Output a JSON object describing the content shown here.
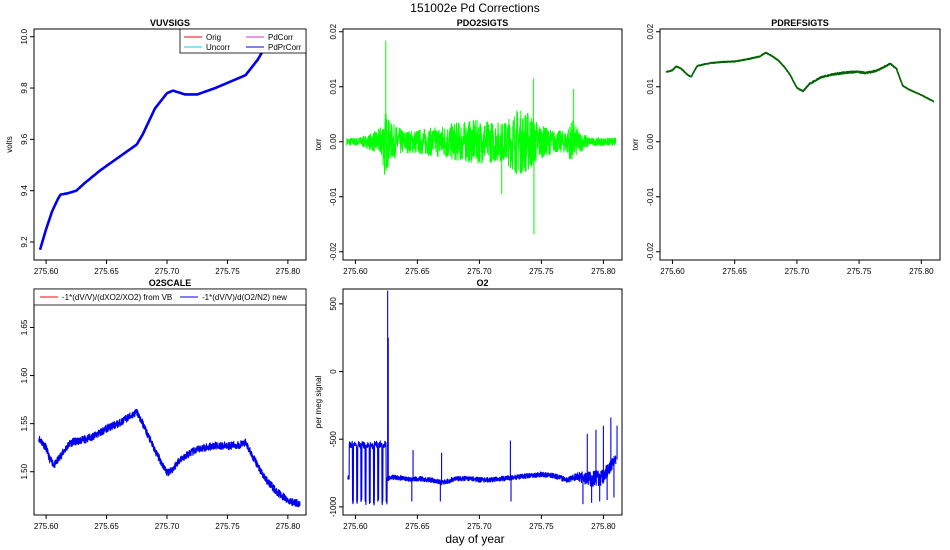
{
  "figure": {
    "title": "151002e   Pd Corrections",
    "xlabel": "day of year",
    "colors": {
      "axis": "#000000",
      "orig": "#ff0000",
      "uncorr": "#00d8d8",
      "pdcorr": "#cc33cc",
      "pdprcorr": "#0000ee",
      "green": "#00ff00",
      "darkgreen": "#006400"
    }
  },
  "chart_data": [
    {
      "id": "vuvsigs",
      "type": "line",
      "title": "VUVSIGS",
      "ylabel": "volts",
      "xlim": [
        275.59,
        275.815
      ],
      "ylim": [
        9.13,
        10.03
      ],
      "xticks": [
        275.6,
        275.65,
        275.7,
        275.75,
        275.8
      ],
      "xtick_labels": [
        "275.60",
        "275.65",
        "275.70",
        "275.75",
        "275.80"
      ],
      "yticks": [
        9.2,
        9.4,
        9.6,
        9.8,
        10.0
      ],
      "ytick_labels": [
        "9.2",
        "9.4",
        "9.6",
        "9.8",
        "10.0"
      ],
      "legend": {
        "placement": "top-right",
        "entries": [
          {
            "label": "Orig",
            "color": "#ff0000"
          },
          {
            "label": "PdCorr",
            "color": "#cc33cc"
          },
          {
            "label": "Uncorr",
            "color": "#00d8d8"
          },
          {
            "label": "PdPrCorr",
            "color": "#0000ee"
          }
        ]
      },
      "series": [
        {
          "name": "PdPrCorr",
          "color": "#0000ee",
          "width": 2.6,
          "noise": 0,
          "x": [
            275.595,
            275.6,
            275.605,
            275.61,
            275.612,
            275.618,
            275.625,
            275.632,
            275.645,
            275.66,
            275.675,
            275.68,
            275.69,
            275.7,
            275.705,
            275.715,
            275.725,
            275.74,
            275.755,
            275.765,
            275.775,
            275.78
          ],
          "y": [
            9.17,
            9.25,
            9.32,
            9.37,
            9.385,
            9.39,
            9.4,
            9.43,
            9.48,
            9.53,
            9.58,
            9.62,
            9.72,
            9.78,
            9.79,
            9.775,
            9.775,
            9.8,
            9.83,
            9.85,
            9.91,
            9.95
          ]
        }
      ]
    },
    {
      "id": "pdo2sigts",
      "type": "line",
      "title": "PDO2SIGTS",
      "ylabel": "torr",
      "xlim": [
        275.59,
        275.815
      ],
      "ylim": [
        -0.0215,
        0.0205
      ],
      "xticks": [
        275.6,
        275.65,
        275.7,
        275.75,
        275.8
      ],
      "xtick_labels": [
        "275.60",
        "275.65",
        "275.70",
        "275.75",
        "275.80"
      ],
      "yticks": [
        -0.02,
        -0.01,
        0.0,
        0.01,
        0.02
      ],
      "ytick_labels": [
        "-0.02",
        "-0.01",
        "0.00",
        "0.01",
        "0.02"
      ],
      "series": [
        {
          "name": "PDO2SIGTS",
          "color": "#00ff00",
          "width": 1,
          "noise": 1,
          "seed": 7,
          "x": [
            275.593,
            275.6,
            275.61,
            275.62,
            275.624,
            275.628,
            275.64,
            275.66,
            275.68,
            275.7,
            275.72,
            275.73,
            275.74,
            275.75,
            275.76,
            275.77,
            275.775,
            275.78,
            275.79,
            275.81
          ],
          "y": [
            0,
            0,
            0,
            0,
            0,
            0,
            0,
            0,
            0,
            0,
            0,
            0,
            0,
            0,
            0,
            0,
            0,
            0,
            0,
            0
          ],
          "amp": [
            0.0007,
            0.0007,
            0.0012,
            0.0025,
            0.006,
            0.0035,
            0.002,
            0.0025,
            0.0035,
            0.004,
            0.0035,
            0.006,
            0.0055,
            0.003,
            0.002,
            0.002,
            0.004,
            0.002,
            0.0007,
            0.0007
          ],
          "spikes": [
            {
              "x": 275.6245,
              "y": 0.0184
            },
            {
              "x": 275.6235,
              "y": -0.006
            },
            {
              "x": 275.744,
              "y": -0.0168
            },
            {
              "x": 275.7435,
              "y": 0.0115
            },
            {
              "x": 275.718,
              "y": -0.0095
            },
            {
              "x": 275.776,
              "y": 0.0096
            }
          ]
        }
      ]
    },
    {
      "id": "pdrefsigts",
      "type": "line",
      "title": "PDREFSIGTS",
      "ylabel": "torr",
      "xlim": [
        275.59,
        275.815
      ],
      "ylim": [
        -0.0215,
        0.0205
      ],
      "xticks": [
        275.6,
        275.65,
        275.7,
        275.75,
        275.8
      ],
      "xtick_labels": [
        "275.60",
        "275.65",
        "275.70",
        "275.75",
        "275.80"
      ],
      "yticks": [
        -0.02,
        -0.01,
        0.0,
        0.01,
        0.02
      ],
      "ytick_labels": [
        "-0.02",
        "-0.01",
        "0.00",
        "0.01",
        "0.02"
      ],
      "series": [
        {
          "name": "PDREFSIGTS",
          "color": "#006400",
          "width": 1.6,
          "noise": 0.25,
          "seed": 3,
          "x": [
            275.595,
            275.6,
            275.603,
            275.607,
            275.612,
            275.615,
            275.62,
            275.63,
            275.64,
            275.65,
            275.66,
            275.67,
            275.675,
            275.68,
            275.685,
            275.69,
            275.695,
            275.7,
            275.705,
            275.71,
            275.72,
            275.73,
            275.74,
            275.75,
            275.755,
            275.76,
            275.765,
            275.775,
            275.78,
            275.785,
            275.79,
            275.8,
            275.81
          ],
          "y": [
            0.0127,
            0.013,
            0.0137,
            0.0133,
            0.0122,
            0.0118,
            0.0138,
            0.0143,
            0.0145,
            0.0146,
            0.015,
            0.0155,
            0.0162,
            0.0156,
            0.0148,
            0.0136,
            0.012,
            0.0098,
            0.0092,
            0.0105,
            0.0118,
            0.0123,
            0.0126,
            0.0127,
            0.0125,
            0.0127,
            0.013,
            0.0142,
            0.0133,
            0.0102,
            0.0095,
            0.0085,
            0.0073
          ],
          "amp": [
            0.0003,
            0.0003,
            0.0003,
            0.0003,
            0.0003,
            0.0003,
            0.0003,
            0.0003,
            0.0003,
            0.0003,
            0.0003,
            0.0003,
            0.0003,
            0.0003,
            0.0003,
            0.0003,
            0.0003,
            0.0003,
            0.0004,
            0.0005,
            0.0006,
            0.0006,
            0.0007,
            0.0006,
            0.0006,
            0.0006,
            0.0005,
            0.0004,
            0.0004,
            0.0003,
            0.0002,
            0.0002,
            0.0002
          ]
        }
      ]
    },
    {
      "id": "o2scale",
      "type": "line",
      "title": "O2SCALE",
      "ylabel": "",
      "xlim": [
        275.59,
        275.815
      ],
      "ylim": [
        1.455,
        1.69
      ],
      "xticks": [
        275.6,
        275.65,
        275.7,
        275.75,
        275.8
      ],
      "xtick_labels": [
        "275.60",
        "275.65",
        "275.70",
        "275.75",
        "275.80"
      ],
      "yticks": [
        1.5,
        1.55,
        1.6,
        1.65
      ],
      "ytick_labels": [
        "1.50",
        "1.55",
        "1.60",
        "1.65"
      ],
      "legend": {
        "placement": "top",
        "entries": [
          {
            "label": "-1*(dV/V)/(dXO2/XO2) from VB",
            "color": "#ff0000"
          },
          {
            "label": "-1*(dV/V)/d(O2/N2) new",
            "color": "#0000ee"
          }
        ]
      },
      "series": [
        {
          "name": "-1*(dV/V)/d(O2/N2) new",
          "color": "#0000ee",
          "width": 1.1,
          "noise": 1,
          "seed": 11,
          "x": [
            275.594,
            275.6,
            275.603,
            275.607,
            275.615,
            275.62,
            275.63,
            275.64,
            275.65,
            275.66,
            275.67,
            275.675,
            275.68,
            275.69,
            275.7,
            275.705,
            275.71,
            275.72,
            275.73,
            275.74,
            275.75,
            275.76,
            275.765,
            275.77,
            275.78,
            275.79,
            275.8,
            275.805,
            275.81
          ],
          "y": [
            1.535,
            1.525,
            1.513,
            1.507,
            1.522,
            1.53,
            1.533,
            1.537,
            1.545,
            1.55,
            1.558,
            1.562,
            1.55,
            1.522,
            1.499,
            1.503,
            1.512,
            1.52,
            1.525,
            1.527,
            1.527,
            1.528,
            1.53,
            1.518,
            1.495,
            1.48,
            1.47,
            1.468,
            1.467
          ],
          "amp": [
            0.004,
            0.004,
            0.004,
            0.004,
            0.004,
            0.004,
            0.004,
            0.004,
            0.004,
            0.004,
            0.004,
            0.004,
            0.004,
            0.004,
            0.004,
            0.004,
            0.004,
            0.004,
            0.004,
            0.004,
            0.004,
            0.004,
            0.004,
            0.004,
            0.004,
            0.004,
            0.004,
            0.004,
            0.004
          ]
        }
      ]
    },
    {
      "id": "o2",
      "type": "line",
      "title": "O2",
      "ylabel": "per meg signal",
      "xlim": [
        275.59,
        275.815
      ],
      "ylim": [
        -1060,
        610
      ],
      "xticks": [
        275.6,
        275.65,
        275.7,
        275.75,
        275.8
      ],
      "xtick_labels": [
        "275.60",
        "275.65",
        "275.70",
        "275.75",
        "275.80"
      ],
      "yticks": [
        -1000,
        -500,
        0,
        500
      ],
      "ytick_labels": [
        "-1000",
        "-500",
        "0",
        "500"
      ],
      "series": [
        {
          "name": "O2",
          "color": "#0000ee",
          "width": 1.1,
          "noise": 1,
          "seed": 5,
          "x": [
            275.594,
            275.626,
            275.63,
            275.64,
            275.645,
            275.65,
            275.66,
            275.67,
            275.675,
            275.68,
            275.69,
            275.7,
            275.71,
            275.72,
            275.73,
            275.74,
            275.75,
            275.76,
            275.77,
            275.78,
            275.79,
            275.8,
            275.81
          ],
          "y": [
            -780,
            -790,
            -780,
            -790,
            -800,
            -790,
            -800,
            -820,
            -810,
            -790,
            -790,
            -800,
            -800,
            -790,
            -780,
            -770,
            -760,
            -770,
            -800,
            -780,
            -790,
            -780,
            -650
          ],
          "amp": [
            18,
            18,
            18,
            18,
            18,
            18,
            18,
            18,
            18,
            18,
            18,
            18,
            18,
            18,
            18,
            18,
            18,
            18,
            18,
            35,
            60,
            60,
            40
          ],
          "square": [
            {
              "x0": 275.595,
              "x1": 275.6255,
              "period": 0.0034,
              "lo": -960,
              "hi": -540
            }
          ],
          "spikes": [
            {
              "x": 275.626,
              "y": 598
            },
            {
              "x": 275.6265,
              "y": 250
            },
            {
              "x": 275.6455,
              "y": -960
            },
            {
              "x": 275.6465,
              "y": -580
            },
            {
              "x": 275.6685,
              "y": -960
            },
            {
              "x": 275.6695,
              "y": -600
            },
            {
              "x": 275.725,
              "y": -510
            },
            {
              "x": 275.7255,
              "y": -960
            },
            {
              "x": 275.7835,
              "y": -980
            },
            {
              "x": 275.787,
              "y": -460
            },
            {
              "x": 275.7905,
              "y": -970
            },
            {
              "x": 275.794,
              "y": -430
            },
            {
              "x": 275.797,
              "y": -960
            },
            {
              "x": 275.8,
              "y": -400
            },
            {
              "x": 275.803,
              "y": -950
            },
            {
              "x": 275.806,
              "y": -340
            },
            {
              "x": 275.8085,
              "y": -930
            },
            {
              "x": 275.811,
              "y": -400
            }
          ]
        }
      ]
    }
  ]
}
